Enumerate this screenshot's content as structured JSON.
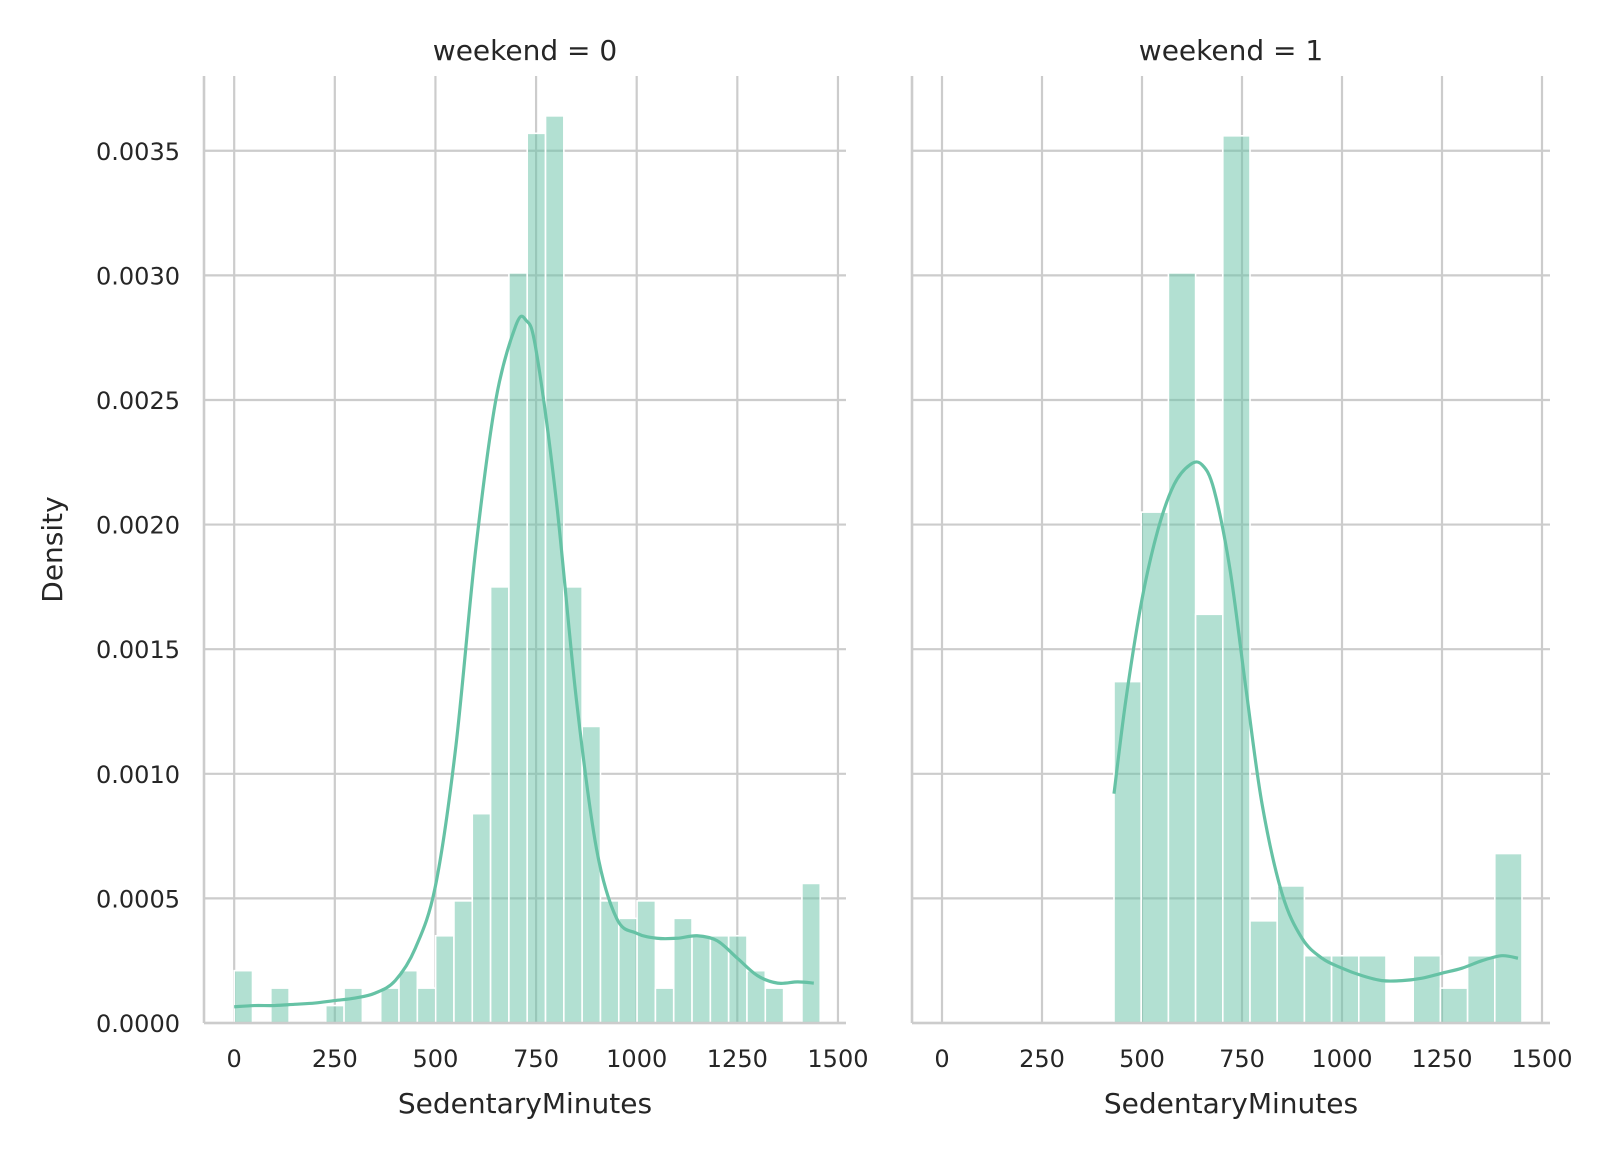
{
  "chart_data": [
    {
      "type": "histogram",
      "title": "weekend = 0",
      "xlabel": "SedentaryMinutes",
      "ylabel": "Density",
      "xlim": [
        -75,
        1520
      ],
      "ylim": [
        0,
        0.0038
      ],
      "xticks": [
        0,
        250,
        500,
        750,
        1000,
        1250,
        1500
      ],
      "yticks": [
        0.0,
        0.0005,
        0.001,
        0.0015,
        0.002,
        0.0025,
        0.003,
        0.0035
      ],
      "ytick_labels": [
        "0.0000",
        "0.0005",
        "0.0010",
        "0.0015",
        "0.0020",
        "0.0025",
        "0.0030",
        "0.0035"
      ],
      "grid": true,
      "color": "#66c2a5",
      "bin_width": 45.5,
      "bins": [
        {
          "x0": 0,
          "value": 0.00021
        },
        {
          "x0": 45.5,
          "value": 0.0
        },
        {
          "x0": 91,
          "value": 0.00014
        },
        {
          "x0": 136.5,
          "value": 0.0
        },
        {
          "x0": 182,
          "value": 0.0
        },
        {
          "x0": 227.5,
          "value": 7e-05
        },
        {
          "x0": 273,
          "value": 0.00014
        },
        {
          "x0": 318.5,
          "value": 0.0
        },
        {
          "x0": 364,
          "value": 0.00014
        },
        {
          "x0": 409.5,
          "value": 0.00021
        },
        {
          "x0": 455,
          "value": 0.00014
        },
        {
          "x0": 500.5,
          "value": 0.00035
        },
        {
          "x0": 546,
          "value": 0.00049
        },
        {
          "x0": 591.5,
          "value": 0.00084
        },
        {
          "x0": 637,
          "value": 0.00175
        },
        {
          "x0": 682.5,
          "value": 0.00301
        },
        {
          "x0": 728,
          "value": 0.00357
        },
        {
          "x0": 773.5,
          "value": 0.00364
        },
        {
          "x0": 819,
          "value": 0.00175
        },
        {
          "x0": 864.5,
          "value": 0.00119
        },
        {
          "x0": 910,
          "value": 0.00049
        },
        {
          "x0": 955.5,
          "value": 0.00042
        },
        {
          "x0": 1001,
          "value": 0.00049
        },
        {
          "x0": 1046.5,
          "value": 0.00014
        },
        {
          "x0": 1092,
          "value": 0.00042
        },
        {
          "x0": 1137.5,
          "value": 0.00035
        },
        {
          "x0": 1183,
          "value": 0.00035
        },
        {
          "x0": 1228.5,
          "value": 0.00035
        },
        {
          "x0": 1274,
          "value": 0.00021
        },
        {
          "x0": 1319.5,
          "value": 0.00014
        },
        {
          "x0": 1365,
          "value": 0.0
        },
        {
          "x0": 1410.5,
          "value": 0.00056
        }
      ],
      "kde": {
        "x": [
          0,
          50,
          100,
          150,
          200,
          250,
          300,
          350,
          400,
          450,
          500,
          550,
          600,
          650,
          700,
          725,
          750,
          800,
          850,
          900,
          950,
          1000,
          1050,
          1100,
          1150,
          1200,
          1250,
          1300,
          1350,
          1400,
          1440
        ],
        "y": [
          6.5e-05,
          7e-05,
          7e-05,
          7.5e-05,
          8e-05,
          9e-05,
          0.0001,
          0.00012,
          0.00017,
          0.0003,
          0.00055,
          0.0011,
          0.0019,
          0.0025,
          0.0028,
          0.00282,
          0.0027,
          0.0021,
          0.0013,
          0.0007,
          0.00042,
          0.00036,
          0.00034,
          0.00034,
          0.00035,
          0.00033,
          0.00026,
          0.00019,
          0.00016,
          0.000165,
          0.00016
        ]
      }
    },
    {
      "type": "histogram",
      "title": "weekend = 1",
      "xlabel": "SedentaryMinutes",
      "ylabel": "",
      "xlim": [
        -75,
        1520
      ],
      "ylim": [
        0,
        0.0038
      ],
      "xticks": [
        0,
        250,
        500,
        750,
        1000,
        1250,
        1500
      ],
      "yticks": [
        0.0,
        0.0005,
        0.001,
        0.0015,
        0.002,
        0.0025,
        0.003,
        0.0035
      ],
      "grid": true,
      "color": "#66c2a5",
      "bin_width": 68,
      "bins": [
        {
          "x0": 430,
          "value": 0.00137
        },
        {
          "x0": 498,
          "value": 0.00205
        },
        {
          "x0": 566,
          "value": 0.00301
        },
        {
          "x0": 634,
          "value": 0.00164
        },
        {
          "x0": 702,
          "value": 0.00356
        },
        {
          "x0": 770,
          "value": 0.00041
        },
        {
          "x0": 838,
          "value": 0.00055
        },
        {
          "x0": 906,
          "value": 0.00027
        },
        {
          "x0": 974,
          "value": 0.00027
        },
        {
          "x0": 1042,
          "value": 0.00027
        },
        {
          "x0": 1110,
          "value": 0.0
        },
        {
          "x0": 1178,
          "value": 0.00027
        },
        {
          "x0": 1246,
          "value": 0.00014
        },
        {
          "x0": 1314,
          "value": 0.00027
        },
        {
          "x0": 1382,
          "value": 0.00068
        }
      ],
      "kde": {
        "x": [
          430,
          460,
          500,
          540,
          580,
          620,
          650,
          680,
          720,
          760,
          800,
          850,
          900,
          950,
          1000,
          1050,
          1100,
          1150,
          1200,
          1250,
          1300,
          1350,
          1400,
          1440
        ],
        "y": [
          0.00092,
          0.0013,
          0.0017,
          0.00198,
          0.00216,
          0.00224,
          0.00224,
          0.00214,
          0.00182,
          0.00134,
          0.00088,
          0.00052,
          0.00034,
          0.00026,
          0.00022,
          0.00019,
          0.00017,
          0.00017,
          0.00018,
          0.0002,
          0.00022,
          0.00025,
          0.00027,
          0.00026
        ]
      }
    }
  ]
}
